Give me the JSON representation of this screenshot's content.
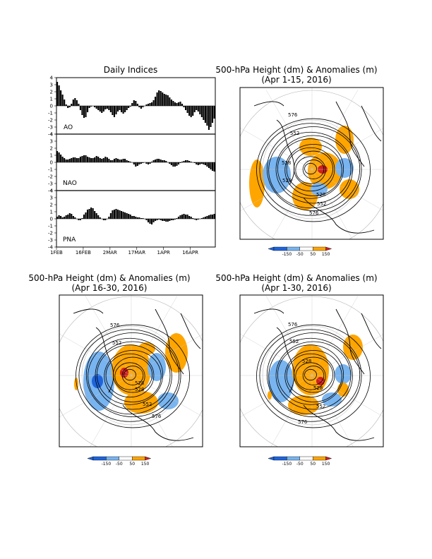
{
  "titles": {
    "indices": "Daily Indices",
    "map1_line1": "500-hPa Height (dm) & Anomalies (m)",
    "map1_line2": "(Apr 1-15, 2016)",
    "map2_line1": "500-hPa Height (dm) & Anomalies (m)",
    "map2_line2": "(Apr 16-30, 2016)",
    "map3_line1": "500-hPa Height (dm) & Anomalies (m)",
    "map3_line2": "(Apr 1-30, 2016)"
  },
  "colorbar": {
    "labels": [
      "-150",
      "-50",
      "50",
      "150"
    ],
    "colors": [
      "#1e64dc",
      "#78b4f0",
      "#ffffff",
      "#ffa500",
      "#d21e1e"
    ]
  },
  "chart_data": [
    {
      "type": "bar",
      "label": "AO",
      "ylim": [
        -4,
        4
      ],
      "yticks": [
        4,
        3,
        2,
        1,
        0,
        -1,
        -2,
        -3,
        -4
      ],
      "xtick_labels": [
        "1FEB",
        "16FEB",
        "2MAR",
        "17MAR",
        "1APR",
        "16APR"
      ],
      "xtick_days": [
        0,
        15,
        30,
        45,
        60,
        75
      ],
      "values": [
        3.4,
        2.9,
        2.2,
        1.6,
        0.9,
        0.2,
        -0.3,
        -0.2,
        0.3,
        0.9,
        1.1,
        0.8,
        0.3,
        -0.6,
        -1.3,
        -1.7,
        -1.6,
        -0.9,
        -0.3,
        -0.1,
        0.0,
        -0.2,
        -0.4,
        -0.6,
        -0.8,
        -1.0,
        -0.8,
        -0.5,
        -0.4,
        -0.6,
        -0.9,
        -1.3,
        -1.6,
        -1.2,
        -0.8,
        -0.6,
        -0.9,
        -1.1,
        -0.9,
        -0.6,
        -0.3,
        -0.1,
        0.4,
        0.8,
        0.7,
        0.3,
        -0.2,
        -0.4,
        -0.2,
        0.0,
        0.2,
        0.3,
        0.4,
        0.5,
        0.8,
        1.3,
        1.9,
        2.2,
        2.1,
        1.9,
        1.7,
        1.6,
        1.5,
        1.2,
        0.9,
        0.7,
        0.5,
        0.4,
        0.5,
        0.6,
        0.3,
        -0.2,
        -0.6,
        -1.0,
        -1.4,
        -1.6,
        -1.4,
        -0.9,
        -0.6,
        -0.8,
        -1.2,
        -1.6,
        -2.0,
        -2.4,
        -2.8,
        -3.4,
        -3.0,
        -2.4,
        -1.8
      ]
    },
    {
      "type": "bar",
      "label": "NAO",
      "ylim": [
        -4,
        4
      ],
      "yticks": [
        4,
        3,
        2,
        1,
        0,
        -1,
        -2,
        -3,
        -4
      ],
      "xtick_labels": [
        "1FEB",
        "16FEB",
        "2MAR",
        "17MAR",
        "1APR",
        "16APR"
      ],
      "xtick_days": [
        0,
        15,
        30,
        45,
        60,
        75
      ],
      "values": [
        1.6,
        1.4,
        1.1,
        0.8,
        0.6,
        0.4,
        0.4,
        0.5,
        0.6,
        0.7,
        0.7,
        0.6,
        0.6,
        0.8,
        0.9,
        1.0,
        1.0,
        0.8,
        0.7,
        0.6,
        0.6,
        0.7,
        0.9,
        0.8,
        0.6,
        0.5,
        0.6,
        0.8,
        0.7,
        0.5,
        0.3,
        0.3,
        0.5,
        0.6,
        0.5,
        0.4,
        0.4,
        0.5,
        0.5,
        0.3,
        0.2,
        0.1,
        0.0,
        -0.3,
        -0.6,
        -0.5,
        -0.3,
        -0.2,
        -0.1,
        0.0,
        -0.2,
        -0.3,
        -0.2,
        0.1,
        0.3,
        0.4,
        0.5,
        0.5,
        0.4,
        0.3,
        0.3,
        0.2,
        0.0,
        -0.2,
        -0.4,
        -0.6,
        -0.6,
        -0.5,
        -0.3,
        -0.1,
        0.1,
        0.2,
        0.3,
        0.3,
        0.2,
        0.1,
        0.0,
        -0.1,
        -0.3,
        -0.4,
        -0.3,
        -0.2,
        -0.3,
        -0.4,
        -0.6,
        -0.8,
        -1.0,
        -1.2,
        -1.3
      ]
    },
    {
      "type": "bar",
      "label": "PNA",
      "ylim": [
        -4,
        4
      ],
      "yticks": [
        4,
        3,
        2,
        1,
        0,
        -1,
        -2,
        -3,
        -4
      ],
      "xtick_labels": [
        "1FEB",
        "16FEB",
        "2MAR",
        "17MAR",
        "1APR",
        "16APR"
      ],
      "xtick_days": [
        0,
        15,
        30,
        45,
        60,
        75
      ],
      "values": [
        0.3,
        0.5,
        0.4,
        0.2,
        0.3,
        0.5,
        0.6,
        0.8,
        0.7,
        0.4,
        0.2,
        0.0,
        -0.2,
        -0.2,
        0.1,
        0.6,
        0.9,
        1.3,
        1.4,
        1.6,
        1.5,
        1.1,
        0.8,
        0.5,
        0.2,
        0.0,
        -0.2,
        -0.2,
        0.0,
        0.3,
        0.8,
        1.2,
        1.3,
        1.4,
        1.3,
        1.2,
        1.1,
        1.0,
        0.9,
        0.8,
        0.7,
        0.6,
        0.4,
        0.4,
        0.3,
        0.2,
        0.2,
        0.1,
        0.1,
        0.0,
        -0.2,
        -0.5,
        -0.7,
        -0.8,
        -0.5,
        -0.3,
        -0.2,
        -0.1,
        -0.2,
        -0.3,
        -0.3,
        -0.4,
        -0.4,
        -0.3,
        -0.2,
        -0.2,
        -0.1,
        0.1,
        0.3,
        0.5,
        0.6,
        0.7,
        0.6,
        0.6,
        0.4,
        0.3,
        0.1,
        -0.1,
        -0.2,
        -0.1,
        0.0,
        0.1,
        0.2,
        0.3,
        0.4,
        0.5,
        0.6,
        0.6,
        0.7
      ]
    }
  ],
  "maps": {
    "contour_labels": {
      "map1": [
        "576",
        "552",
        "528",
        "528",
        "528",
        "552",
        "576"
      ],
      "map2": [
        "576",
        "552",
        "528",
        "528",
        "552",
        "576"
      ],
      "map3": [
        "576",
        "552",
        "528",
        "528",
        "552",
        "576"
      ]
    }
  }
}
